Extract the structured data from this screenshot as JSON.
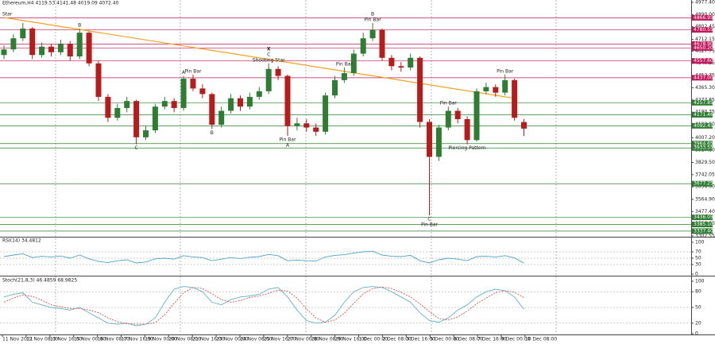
{
  "chart_data": {
    "type": "candlestick",
    "header": "Ethereum,H4  4119.53 4141.48 4019.09 4072.40",
    "corner_label": "Star",
    "up_color": "#2e7d32",
    "down_color": "#b71c1c",
    "ylim": [
      3302.55,
      4977.4
    ],
    "yticks": [
      {
        "value": 4977.4,
        "label": "4977.40"
      },
      {
        "value": 4890.0,
        "label": "4890.00"
      },
      {
        "value": 4802.45,
        "label": "4802.45"
      },
      {
        "value": 4712.15,
        "label": "4712.15"
      },
      {
        "value": 4627.75,
        "label": "4627.75"
      },
      {
        "value": 4540.25,
        "label": "4540.25"
      },
      {
        "value": 4452.75,
        "label": "4452.75"
      },
      {
        "value": 4365.3,
        "label": "4365.30"
      },
      {
        "value": 4277.85,
        "label": "4277.85"
      },
      {
        "value": 4190.35,
        "label": "4190.35"
      },
      {
        "value": 4102.9,
        "label": "4102.90"
      },
      {
        "value": 4007.2,
        "label": "4007.20"
      },
      {
        "value": 3917.8,
        "label": "3917.80"
      },
      {
        "value": 3829.5,
        "label": "3829.50"
      },
      {
        "value": 3742.05,
        "label": "3742.05"
      },
      {
        "value": 3654.6,
        "label": "3654.60"
      },
      {
        "value": 3564.9,
        "label": "3564.90"
      },
      {
        "value": 3477.4,
        "label": "3477.40"
      },
      {
        "value": 3390.0,
        "label": "3390.00"
      },
      {
        "value": 3302.55,
        "label": "3302.55"
      }
    ],
    "levels": [
      {
        "value": 4866.95,
        "label": "4866.95",
        "color": "#c2185b"
      },
      {
        "value": 4780.55,
        "label": "4780.55",
        "color": "#c2185b"
      },
      {
        "value": 4678.9,
        "label": "4678.90",
        "color": "#c2185b"
      },
      {
        "value": 4650.2,
        "label": "4650.20",
        "color": "#c2185b"
      },
      {
        "value": 4557.6,
        "label": "4557.60",
        "color": "#c2185b"
      },
      {
        "value": 4437.0,
        "label": "4437.00",
        "color": "#c2185b"
      },
      {
        "value": 4257.85,
        "label": "4257.85",
        "color": "#2e7d32"
      },
      {
        "value": 4171.46,
        "label": "4171.46",
        "color": "#2e7d32"
      },
      {
        "value": 4092.45,
        "label": "4092.45",
        "color": "#2e7d32"
      },
      {
        "value": 3964.65,
        "label": "3964.65",
        "color": "#2e7d32"
      },
      {
        "value": 3933.55,
        "label": "3933.55",
        "color": "#2e7d32"
      },
      {
        "value": 3677.25,
        "label": "3677.25",
        "color": "#2e7d32"
      },
      {
        "value": 3436.05,
        "label": "3436.05",
        "color": "#2e7d32"
      },
      {
        "value": 3385.1,
        "label": "3385.10",
        "color": "#2e7d32"
      },
      {
        "value": 3337.4,
        "label": "3337.40",
        "color": "#2e7d32"
      }
    ],
    "candles": [
      {
        "o": 4600,
        "h": 4670,
        "l": 4570,
        "c": 4640
      },
      {
        "o": 4640,
        "h": 4750,
        "l": 4620,
        "c": 4720
      },
      {
        "o": 4720,
        "h": 4830,
        "l": 4700,
        "c": 4790
      },
      {
        "o": 4790,
        "h": 4800,
        "l": 4570,
        "c": 4600
      },
      {
        "o": 4600,
        "h": 4690,
        "l": 4580,
        "c": 4660
      },
      {
        "o": 4660,
        "h": 4680,
        "l": 4590,
        "c": 4620
      },
      {
        "o": 4620,
        "h": 4710,
        "l": 4600,
        "c": 4680
      },
      {
        "o": 4680,
        "h": 4700,
        "l": 4560,
        "c": 4590
      },
      {
        "o": 4590,
        "h": 4790,
        "l": 4570,
        "c": 4760
      },
      {
        "o": 4760,
        "h": 4770,
        "l": 4520,
        "c": 4540
      },
      {
        "o": 4540,
        "h": 4560,
        "l": 4270,
        "c": 4300
      },
      {
        "o": 4300,
        "h": 4320,
        "l": 4120,
        "c": 4150
      },
      {
        "o": 4150,
        "h": 4250,
        "l": 4130,
        "c": 4220
      },
      {
        "o": 4220,
        "h": 4300,
        "l": 4190,
        "c": 4270
      },
      {
        "o": 4270,
        "h": 4280,
        "l": 3960,
        "c": 4010
      },
      {
        "o": 4010,
        "h": 4090,
        "l": 3990,
        "c": 4060
      },
      {
        "o": 4060,
        "h": 4250,
        "l": 4040,
        "c": 4230
      },
      {
        "o": 4230,
        "h": 4300,
        "l": 4210,
        "c": 4270
      },
      {
        "o": 4270,
        "h": 4290,
        "l": 4190,
        "c": 4220
      },
      {
        "o": 4220,
        "h": 4450,
        "l": 4200,
        "c": 4430
      },
      {
        "o": 4430,
        "h": 4460,
        "l": 4340,
        "c": 4360
      },
      {
        "o": 4360,
        "h": 4390,
        "l": 4290,
        "c": 4320
      },
      {
        "o": 4320,
        "h": 4330,
        "l": 4070,
        "c": 4100
      },
      {
        "o": 4100,
        "h": 4230,
        "l": 4080,
        "c": 4200
      },
      {
        "o": 4200,
        "h": 4320,
        "l": 4180,
        "c": 4290
      },
      {
        "o": 4290,
        "h": 4310,
        "l": 4200,
        "c": 4230
      },
      {
        "o": 4230,
        "h": 4330,
        "l": 4210,
        "c": 4300
      },
      {
        "o": 4300,
        "h": 4370,
        "l": 4280,
        "c": 4340
      },
      {
        "o": 4340,
        "h": 4540,
        "l": 4320,
        "c": 4500
      },
      {
        "o": 4500,
        "h": 4520,
        "l": 4420,
        "c": 4450
      },
      {
        "o": 4450,
        "h": 4460,
        "l": 4020,
        "c": 4090
      },
      {
        "o": 4090,
        "h": 4150,
        "l": 4060,
        "c": 4110
      },
      {
        "o": 4110,
        "h": 4140,
        "l": 4050,
        "c": 4080
      },
      {
        "o": 4080,
        "h": 4110,
        "l": 4020,
        "c": 4050
      },
      {
        "o": 4050,
        "h": 4330,
        "l": 4030,
        "c": 4310
      },
      {
        "o": 4310,
        "h": 4450,
        "l": 4290,
        "c": 4420
      },
      {
        "o": 4420,
        "h": 4510,
        "l": 4400,
        "c": 4470
      },
      {
        "o": 4470,
        "h": 4640,
        "l": 4450,
        "c": 4610
      },
      {
        "o": 4610,
        "h": 4760,
        "l": 4590,
        "c": 4720
      },
      {
        "o": 4720,
        "h": 4830,
        "l": 4700,
        "c": 4780
      },
      {
        "o": 4780,
        "h": 4790,
        "l": 4560,
        "c": 4580
      },
      {
        "o": 4580,
        "h": 4600,
        "l": 4490,
        "c": 4520
      },
      {
        "o": 4520,
        "h": 4550,
        "l": 4480,
        "c": 4510
      },
      {
        "o": 4510,
        "h": 4610,
        "l": 4490,
        "c": 4580
      },
      {
        "o": 4580,
        "h": 4590,
        "l": 4080,
        "c": 4120
      },
      {
        "o": 4120,
        "h": 4140,
        "l": 3450,
        "c": 3870
      },
      {
        "o": 3870,
        "h": 4100,
        "l": 3840,
        "c": 4080
      },
      {
        "o": 4080,
        "h": 4230,
        "l": 4060,
        "c": 4200
      },
      {
        "o": 4200,
        "h": 4220,
        "l": 4110,
        "c": 4140
      },
      {
        "o": 4140,
        "h": 4160,
        "l": 3960,
        "c": 3990
      },
      {
        "o": 3990,
        "h": 4360,
        "l": 3980,
        "c": 4340
      },
      {
        "o": 4340,
        "h": 4400,
        "l": 4320,
        "c": 4370
      },
      {
        "o": 4370,
        "h": 4390,
        "l": 4300,
        "c": 4330
      },
      {
        "o": 4330,
        "h": 4460,
        "l": 4310,
        "c": 4420
      },
      {
        "o": 4420,
        "h": 4430,
        "l": 4130,
        "c": 4150
      },
      {
        "o": 4119.53,
        "h": 4141.48,
        "l": 4019.09,
        "c": 4072.4
      }
    ],
    "trendline": {
      "color": "#f0a020",
      "from": {
        "candle": 0,
        "price": 4869
      },
      "to": {
        "candle": 54,
        "price": 4290
      }
    },
    "annotations": [
      {
        "text": "B",
        "candle": 8,
        "side": "above"
      },
      {
        "text": "C",
        "candle": 14,
        "side": "below"
      },
      {
        "text": "A",
        "candle": 19,
        "side": "above"
      },
      {
        "text": "Pin Bar",
        "candle": 20,
        "side": "above"
      },
      {
        "text": "B",
        "candle": 22,
        "side": "below"
      },
      {
        "text": "Shooting Star",
        "candle": 28,
        "side": "above"
      },
      {
        "text": "C",
        "candle": 28,
        "side": "above"
      },
      {
        "text": "X",
        "candle": 28,
        "side": "above"
      },
      {
        "text": "Pin Bar",
        "candle": 30,
        "side": "below"
      },
      {
        "text": "A",
        "candle": 30,
        "side": "below"
      },
      {
        "text": "Pin Bar",
        "candle": 36,
        "side": "above"
      },
      {
        "text": "Pin Bar",
        "candle": 39,
        "side": "above"
      },
      {
        "text": "B",
        "candle": 39,
        "side": "above"
      },
      {
        "text": "C",
        "candle": 45,
        "side": "below"
      },
      {
        "text": "Pin Bar",
        "candle": 45,
        "side": "below"
      },
      {
        "text": "Pin Bar",
        "candle": 47,
        "side": "above"
      },
      {
        "text": "Piercing Pattern",
        "candle": 49,
        "side": "below"
      },
      {
        "text": "Pin Bar",
        "candle": 53,
        "side": "above"
      }
    ],
    "xlabels": [
      "11 Nov 2021",
      "12 Nov 08:00",
      "13 Nov 16:00",
      "15 Nov 00:00",
      "16 Nov 08:00",
      "17 Nov 16:00",
      "19 Nov 00:00",
      "20 Nov 08:00",
      "21 Nov 16:00",
      "23 Nov 00:00",
      "24 Nov 08:00",
      "25 Nov 16:00",
      "27 Nov 00:00",
      "28 Nov 08:00",
      "29 Nov 16:00",
      "1 Dec 00:00",
      "2 Dec 08:00",
      "3 Dec 16:00",
      "5 Dec 00:00",
      "6 Dec 08:00",
      "7 Dec 16:00",
      "9 Dec 00:00",
      "10 Dec 08:00"
    ],
    "rsi": {
      "title": "RSI(14) 34.4812",
      "color": "#4fa3c7",
      "ylim": [
        0,
        100
      ],
      "yticks": [
        100,
        70,
        50,
        30,
        0
      ],
      "values": [
        55,
        60,
        64,
        52,
        56,
        54,
        57,
        50,
        60,
        48,
        40,
        36,
        42,
        45,
        35,
        38,
        48,
        50,
        47,
        58,
        54,
        52,
        42,
        47,
        52,
        49,
        53,
        55,
        62,
        58,
        42,
        44,
        42,
        41,
        54,
        59,
        61,
        66,
        70,
        72,
        60,
        56,
        55,
        59,
        42,
        35,
        45,
        50,
        47,
        42,
        55,
        56,
        54,
        58,
        51,
        34.4812
      ]
    },
    "stoch": {
      "title": "Stoch(21,8,3) 46.4859 68.9825",
      "ylim": [
        0,
        100
      ],
      "yticks": [
        100,
        80,
        50,
        20,
        0
      ],
      "series": [
        {
          "color": "#5fb3c8",
          "dashed": false,
          "values": [
            70,
            75,
            78,
            60,
            55,
            50,
            48,
            45,
            50,
            40,
            30,
            20,
            18,
            20,
            15,
            18,
            30,
            60,
            85,
            90,
            88,
            80,
            60,
            55,
            65,
            70,
            72,
            75,
            85,
            88,
            70,
            45,
            25,
            20,
            22,
            35,
            60,
            80,
            88,
            90,
            88,
            80,
            70,
            60,
            40,
            25,
            22,
            30,
            45,
            55,
            70,
            80,
            85,
            82,
            70,
            46.4859
          ]
        },
        {
          "color": "#d9534f",
          "dashed": true,
          "values": [
            60,
            68,
            74,
            71,
            64,
            55,
            51,
            48,
            48,
            45,
            40,
            30,
            23,
            19,
            18,
            18,
            21,
            36,
            58,
            78,
            88,
            86,
            76,
            65,
            60,
            63,
            69,
            72,
            77,
            83,
            81,
            68,
            47,
            30,
            22,
            26,
            39,
            58,
            76,
            86,
            89,
            86,
            79,
            70,
            57,
            42,
            29,
            26,
            32,
            43,
            57,
            68,
            78,
            82,
            79,
            68.9825
          ]
        }
      ]
    }
  }
}
